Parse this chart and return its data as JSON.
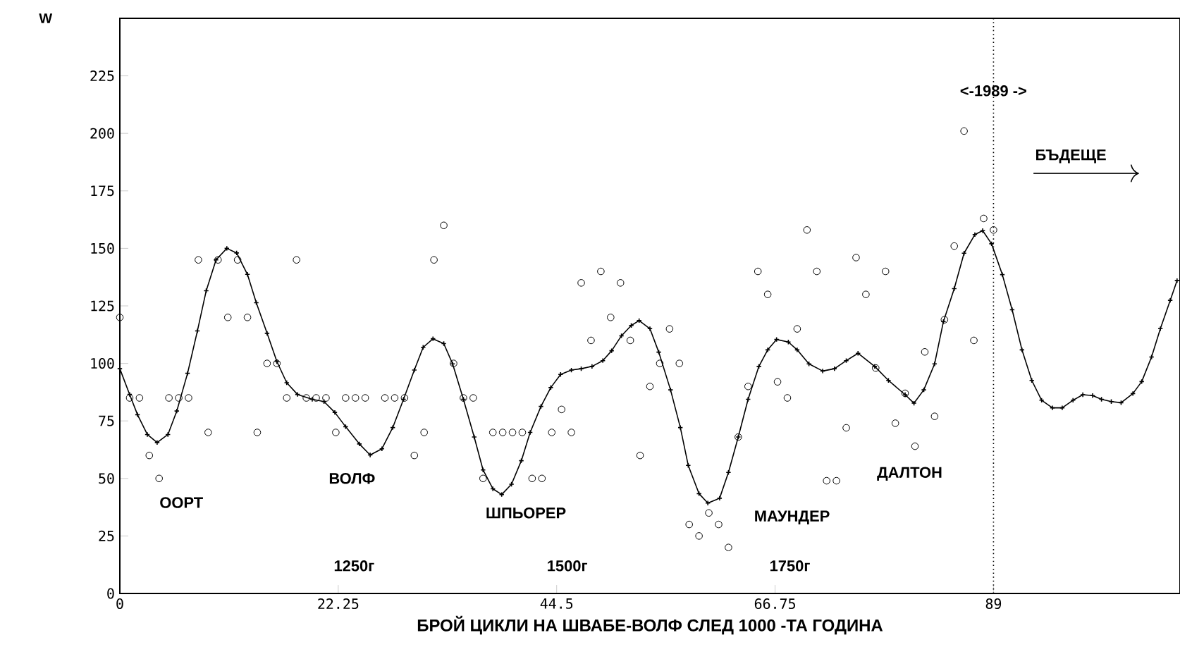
{
  "chart_data": {
    "type": "scatter",
    "xlabel": "БРОЙ ЦИКЛИ НА ШВАБЕ-ВОЛФ СЛЕД 1000 -ТА ГОДИНА",
    "ylabel": "W",
    "xlim": [
      0,
      108
    ],
    "ylim": [
      0,
      250
    ],
    "xticks": [
      0,
      22.25,
      44.5,
      66.75,
      89
    ],
    "yticks": [
      0,
      25,
      50,
      75,
      100,
      125,
      150,
      175,
      200,
      225
    ],
    "series": [
      {
        "marker": "circle",
        "color": "#000000",
        "x": [
          0,
          1,
          2,
          3,
          4,
          5,
          6,
          7,
          8,
          9,
          10,
          11,
          12,
          13,
          14,
          15,
          16,
          17,
          18,
          19,
          20,
          21,
          22,
          23,
          24,
          25,
          27,
          28,
          29,
          30,
          31,
          32,
          33,
          34,
          35,
          36,
          37,
          38,
          39,
          40,
          41,
          42,
          43,
          44,
          45,
          46,
          47,
          48,
          49,
          50,
          51,
          52,
          53,
          54,
          55,
          56,
          57,
          58,
          59,
          60,
          61,
          62,
          63,
          64,
          65,
          66,
          67,
          68,
          69,
          70,
          71,
          72,
          73,
          74,
          75,
          76,
          77,
          78,
          79,
          80,
          81,
          82,
          83,
          84,
          85,
          86,
          87,
          88,
          89
        ],
        "values": [
          120,
          85,
          85,
          60,
          50,
          85,
          85,
          85,
          145,
          70,
          145,
          120,
          145,
          120,
          70,
          100,
          100,
          85,
          145,
          85,
          85,
          85,
          70,
          85,
          85,
          85,
          85,
          85,
          85,
          60,
          70,
          145,
          160,
          100,
          85,
          85,
          50,
          70,
          70,
          70,
          70,
          50,
          50,
          70,
          80,
          70,
          135,
          110,
          140,
          120,
          135,
          110,
          60,
          90,
          100,
          115,
          100,
          30,
          25,
          35,
          30,
          20,
          68,
          90,
          140,
          130,
          92,
          85,
          115,
          158,
          140,
          49,
          49,
          72,
          146,
          130,
          98,
          140,
          74,
          87,
          64,
          105,
          77,
          119,
          151,
          201,
          110,
          163,
          158
        ]
      },
      {
        "type": "line",
        "marker": "cross",
        "color": "#000000",
        "x": [
          0,
          1.0,
          1.8,
          2.8,
          3.8,
          4.9,
          5.8,
          6.9,
          7.9,
          8.8,
          9.8,
          10.9,
          11.9,
          13.0,
          13.9,
          15.0,
          16.0,
          17.0,
          18.1,
          19.6,
          20.8,
          21.9,
          23.0,
          24.4,
          25.5,
          26.7,
          27.8,
          28.9,
          30.0,
          30.9,
          31.9,
          33.0,
          33.9,
          35.0,
          36.1,
          37.0,
          38.0,
          38.9,
          39.9,
          40.9,
          41.8,
          42.9,
          43.9,
          44.9,
          46.0,
          47.0,
          48.1,
          49.2,
          50.1,
          51.1,
          52.1,
          52.9,
          54.0,
          54.9,
          56.1,
          57.1,
          57.9,
          59.0,
          59.9,
          61.1,
          62.0,
          63.0,
          64.0,
          65.1,
          66.0,
          66.9,
          68.1,
          69.0,
          70.2,
          71.6,
          72.8,
          74.0,
          75.2,
          76.9,
          78.3,
          80.0,
          80.9,
          81.9,
          83.0,
          83.9,
          85.0,
          86.0,
          87.1,
          87.9,
          88.8,
          89.9,
          90.9,
          91.9,
          92.9,
          93.9,
          95.0,
          96.0,
          97.1,
          98.1,
          99.1,
          100.0,
          101.0,
          102.0,
          103.2,
          104.1,
          105.1,
          106.0,
          107.0,
          107.7
        ],
        "values": [
          97.7,
          86.5,
          77.7,
          69.1,
          65.6,
          69.1,
          79.3,
          95.7,
          114.1,
          131.6,
          145,
          150,
          148,
          138.7,
          126.4,
          113.1,
          100.8,
          91.6,
          86.5,
          84.4,
          83.4,
          78.7,
          72.5,
          65,
          60.2,
          62.9,
          72.1,
          84.4,
          97.1,
          107,
          110.7,
          108.6,
          99.8,
          84.4,
          68,
          53.7,
          45.5,
          43,
          47.5,
          57.7,
          70,
          81.3,
          89.5,
          95.2,
          97.1,
          97.7,
          98.7,
          101.2,
          105.5,
          112,
          116.5,
          118.6,
          115.1,
          104.9,
          88.5,
          72.1,
          55.7,
          43.4,
          39.3,
          41.4,
          52.6,
          68,
          84.4,
          98.7,
          105.9,
          110.4,
          109.3,
          105.9,
          99.8,
          96.7,
          97.7,
          101.2,
          104.4,
          98.7,
          92.6,
          86.4,
          82.7,
          88.5,
          99.8,
          118.2,
          132.5,
          147.9,
          156,
          157.7,
          152,
          138.6,
          123.3,
          105.9,
          92.6,
          84,
          80.7,
          80.7,
          84,
          86.4,
          86,
          84.4,
          83.4,
          82.9,
          86.9,
          92.1,
          102.8,
          115.1,
          127.4,
          136
        ]
      }
    ],
    "ref_lines": [
      {
        "axis": "x",
        "value": 89,
        "line_style": "dotted",
        "color": "#000000"
      }
    ],
    "annotations": [
      "ООРТ",
      "ВОЛФ",
      "ШПЬОРЕР",
      "МАУНДЕР",
      "ДАЛТОН",
      "1250г",
      "1500г",
      "1750г",
      "<-1989 ->",
      "БЪДЕЩЕ"
    ],
    "grid": false
  }
}
